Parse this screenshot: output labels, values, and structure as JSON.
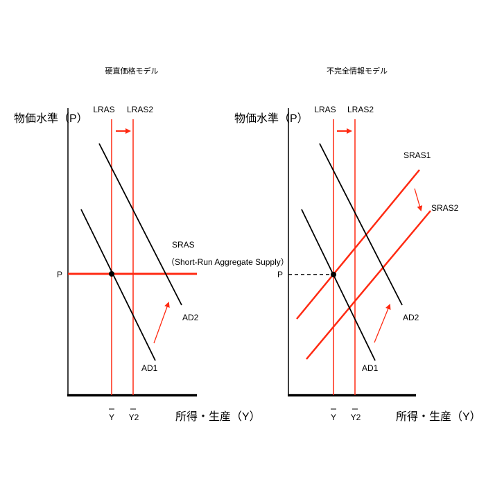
{
  "colors": {
    "curve_black": "#000000",
    "curve_red": "#ff2a12"
  },
  "left": {
    "title": "硬直価格モデル",
    "y_axis_label": "物価水準（P）",
    "x_axis_label": "所得・生産（Y）",
    "price_label": "P",
    "lras_label": "LRAS",
    "lras2_label": "LRAS2",
    "sras_label": "SRAS",
    "sras_desc": "（Short-Run Aggregate Supply）",
    "ad1_label": "AD1",
    "ad2_label": "AD2",
    "ybar_label": "Y",
    "y2bar_label": "Y2"
  },
  "right": {
    "title": "不完全情報モデル",
    "y_axis_label": "物価水準（P）",
    "x_axis_label": "所得・生産（Y）",
    "price_label": "P",
    "lras_label": "LRAS",
    "lras2_label": "LRAS2",
    "sras1_label": "SRAS1",
    "sras2_label": "SRAS2",
    "ad1_label": "AD1",
    "ad2_label": "AD2",
    "ybar_label": "Y",
    "y2bar_label": "Y2"
  }
}
